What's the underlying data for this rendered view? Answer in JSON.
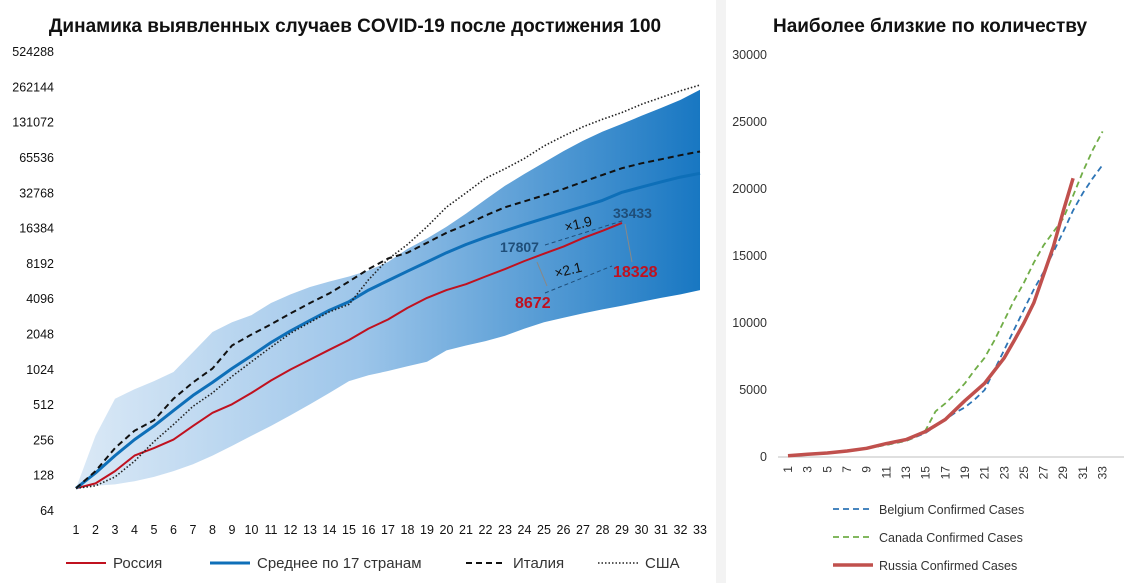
{
  "chart_data": [
    {
      "type": "line",
      "title": "Динамика выявленных случаев COVID-19 после достижения 100",
      "y_scale": "log2",
      "ylim": [
        64,
        524288
      ],
      "y_ticks": [
        "64",
        "128",
        "256",
        "512",
        "1024",
        "2048",
        "4096",
        "8192",
        "16384",
        "32768",
        "65536",
        "131072",
        "262144",
        "524288"
      ],
      "x_ticks": [
        "1",
        "2",
        "3",
        "4",
        "5",
        "6",
        "7",
        "8",
        "9",
        "10",
        "11",
        "12",
        "13",
        "14",
        "15",
        "16",
        "17",
        "18",
        "19",
        "20",
        "21",
        "22",
        "23",
        "24",
        "25",
        "26",
        "27",
        "28",
        "29",
        "30",
        "31",
        "32",
        "33"
      ],
      "band": {
        "x": [
          1,
          2,
          3,
          4,
          5,
          6,
          7,
          8,
          9,
          10,
          11,
          12,
          13,
          14,
          15,
          16,
          17,
          18,
          19,
          20,
          21,
          22,
          23,
          24,
          25,
          26,
          27,
          28,
          29,
          30,
          31,
          32,
          33
        ],
        "upper": [
          100,
          280,
          580,
          700,
          820,
          980,
          1450,
          2150,
          2600,
          3000,
          3800,
          4500,
          5200,
          5800,
          6400,
          7200,
          8500,
          11000,
          13500,
          17000,
          22000,
          29000,
          38000,
          48000,
          60000,
          75000,
          92000,
          110000,
          128000,
          150000,
          175000,
          205000,
          250000
        ],
        "lower": [
          100,
          105,
          108,
          115,
          125,
          140,
          160,
          190,
          230,
          280,
          340,
          420,
          520,
          650,
          820,
          920,
          1000,
          1100,
          1200,
          1500,
          1650,
          1800,
          2000,
          2300,
          2600,
          2850,
          3100,
          3350,
          3600,
          3900,
          4200,
          4500,
          4900
        ]
      },
      "series": [
        {
          "name": "Россия",
          "color": "#c0111f",
          "style": "solid",
          "x": [
            1,
            2,
            3,
            4,
            5,
            6,
            7,
            8,
            9,
            10,
            11,
            12,
            13,
            14,
            15,
            16,
            17,
            18,
            19,
            20,
            21,
            22,
            23,
            24,
            25,
            26,
            27,
            28,
            29
          ],
          "values": [
            100,
            110,
            140,
            190,
            220,
            260,
            340,
            440,
            520,
            650,
            830,
            1030,
            1250,
            1520,
            1840,
            2300,
            2750,
            3450,
            4200,
            4900,
            5500,
            6400,
            7400,
            8672,
            10000,
            11500,
            13600,
            15700,
            18328
          ]
        },
        {
          "name": "Среднее по 17 странам",
          "color": "#0e6fb8",
          "style": "solid",
          "x": [
            1,
            2,
            3,
            4,
            5,
            6,
            7,
            8,
            9,
            10,
            11,
            12,
            13,
            14,
            15,
            16,
            17,
            18,
            19,
            20,
            21,
            22,
            23,
            24,
            25,
            26,
            27,
            28,
            29,
            30,
            31,
            32,
            33
          ],
          "values": [
            100,
            135,
            190,
            260,
            340,
            460,
            620,
            800,
            1050,
            1350,
            1750,
            2200,
            2700,
            3300,
            3900,
            4900,
            5900,
            7100,
            8500,
            10200,
            12000,
            13800,
            15700,
            17807,
            20000,
            22500,
            25300,
            28500,
            33433,
            37000,
            41000,
            45000,
            48500
          ]
        },
        {
          "name": "Италия",
          "color": "#111111",
          "style": "dashed",
          "x": [
            1,
            2,
            3,
            4,
            5,
            6,
            7,
            8,
            9,
            10,
            11,
            12,
            13,
            14,
            15,
            16,
            17,
            18,
            19,
            20,
            21,
            22,
            23,
            24,
            25,
            26,
            27,
            28,
            29,
            30,
            31,
            32,
            33
          ],
          "values": [
            100,
            140,
            220,
            310,
            380,
            580,
            800,
            1050,
            1650,
            2050,
            2500,
            3100,
            3800,
            4600,
            5800,
            7400,
            9100,
            10200,
            12400,
            15100,
            17700,
            21200,
            24900,
            27980,
            31500,
            35700,
            41000,
            47000,
            53600,
            59100,
            63900,
            69200,
            74400
          ]
        },
        {
          "name": "США",
          "color": "#222222",
          "style": "dotted",
          "x": [
            1,
            2,
            3,
            4,
            5,
            6,
            7,
            8,
            9,
            10,
            11,
            12,
            13,
            14,
            15,
            16,
            17,
            18,
            19,
            20,
            21,
            22,
            23,
            24,
            25,
            26,
            27,
            28,
            29,
            30,
            31,
            32,
            33
          ],
          "values": [
            100,
            105,
            125,
            170,
            250,
            350,
            500,
            650,
            900,
            1200,
            1600,
            2100,
            2600,
            3200,
            3700,
            6000,
            9000,
            12000,
            17000,
            25000,
            33000,
            44000,
            53000,
            65000,
            83000,
            101000,
            121000,
            140000,
            160000,
            188000,
            215000,
            245000,
            275000
          ]
        }
      ],
      "annotations": [
        {
          "text": "17807",
          "x": 24,
          "y": 17807,
          "color": "#1f4e79"
        },
        {
          "text": "33433",
          "x": 29,
          "y": 33433,
          "color": "#1f4e79"
        },
        {
          "text": "8672",
          "x": 24,
          "y": 8672,
          "color": "#c0111f"
        },
        {
          "text": "18328",
          "x": 29,
          "y": 18328,
          "color": "#c0111f"
        },
        {
          "text": "×1.9",
          "color": "#111111"
        },
        {
          "text": "×2.1",
          "color": "#111111"
        }
      ],
      "legend": {
        "placement": "bottom"
      }
    },
    {
      "type": "line",
      "title": "Наиболее близкие по количеству",
      "ylim": [
        0,
        30000
      ],
      "y_ticks": [
        "0",
        "5000",
        "10000",
        "15000",
        "20000",
        "25000",
        "30000"
      ],
      "x_ticks": [
        "1",
        "3",
        "5",
        "7",
        "9",
        "11",
        "13",
        "15",
        "17",
        "19",
        "21",
        "23",
        "25",
        "27",
        "29",
        "31",
        "33"
      ],
      "series": [
        {
          "name": "Belgium Confirmed Cases",
          "color": "#2e75b6",
          "style": "dashed",
          "x": [
            1,
            3,
            5,
            7,
            9,
            11,
            13,
            15,
            16,
            17,
            18,
            19,
            20,
            21,
            22,
            23,
            24,
            25,
            26,
            27,
            28,
            29,
            30,
            31,
            32,
            33
          ],
          "values": [
            100,
            200,
            300,
            450,
            650,
            900,
            1200,
            1800,
            2300,
            2800,
            3300,
            3700,
            4300,
            5000,
            6500,
            8000,
            9500,
            11000,
            12500,
            13800,
            15300,
            16800,
            18400,
            19700,
            20800,
            21800
          ]
        },
        {
          "name": "Canada Confirmed Cases",
          "color": "#70ad47",
          "style": "dashed",
          "x": [
            1,
            3,
            5,
            7,
            9,
            11,
            13,
            14,
            15,
            16,
            17,
            18,
            19,
            20,
            21,
            22,
            23,
            24,
            25,
            26,
            27,
            28,
            29,
            30,
            31,
            32,
            33
          ],
          "values": [
            100,
            200,
            300,
            450,
            650,
            900,
            1200,
            1500,
            2000,
            3400,
            4000,
            4700,
            5500,
            6500,
            7400,
            8700,
            10200,
            11700,
            13000,
            14500,
            15800,
            16800,
            17800,
            19500,
            21300,
            22900,
            24300
          ]
        },
        {
          "name": "Russia Confirmed Cases",
          "color": "#c0504d",
          "style": "solid",
          "x": [
            1,
            3,
            5,
            7,
            9,
            11,
            13,
            15,
            17,
            19,
            21,
            23,
            24,
            25,
            26,
            27,
            28,
            29,
            30
          ],
          "values": [
            100,
            200,
            300,
            450,
            650,
            1000,
            1300,
            1900,
            2800,
            4200,
            5500,
            7400,
            8672,
            10000,
            11500,
            13600,
            15700,
            18328,
            20800
          ]
        }
      ],
      "legend": {
        "placement": "bottom"
      }
    }
  ]
}
